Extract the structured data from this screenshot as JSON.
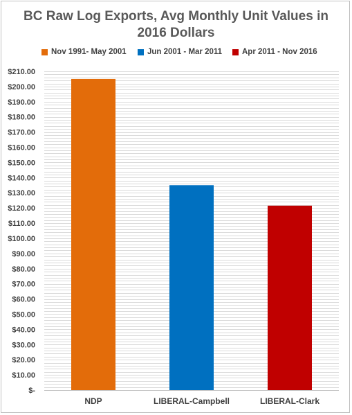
{
  "chart_data": {
    "type": "bar",
    "title": "BC Raw Log Exports, Avg Monthly Unit Values in",
    "subtitle": "2016 Dollars",
    "xlabel": "",
    "ylabel": "",
    "categories": [
      "NDP",
      "LIBERAL-Campbell",
      "LIBERAL-Clark"
    ],
    "values": [
      205,
      135,
      121.5
    ],
    "colors": [
      "#E36C0A",
      "#0070C0",
      "#C00000"
    ],
    "legend": [
      "Nov 1991- May 2001",
      "Jun 2001 - Mar 2011",
      "Apr 2011 - Nov 2016"
    ],
    "legend_position": "top",
    "ylim": [
      0,
      210
    ],
    "ytick_step": 2,
    "ytick_labels": [
      "$-",
      "$10.00",
      "$20.00",
      "$30.00",
      "$40.00",
      "$50.00",
      "$60.00",
      "$70.00",
      "$80.00",
      "$90.00",
      "$100.00",
      "$110.00",
      "$120.00",
      "$130.00",
      "$140.00",
      "$150.00",
      "$160.00",
      "$170.00",
      "$180.00",
      "$190.00",
      "$200.00",
      "$210.00"
    ],
    "grid": true
  }
}
